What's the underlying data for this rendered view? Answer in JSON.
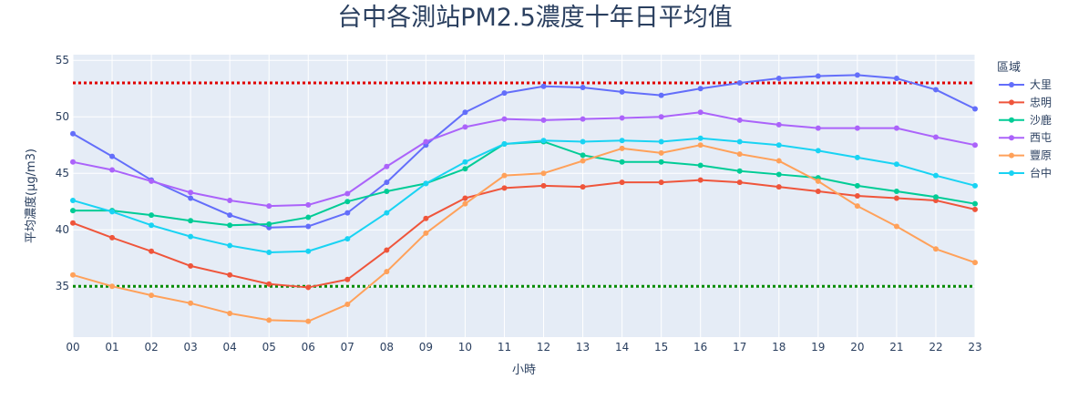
{
  "colors": {
    "plot_bg": "#e5ecf6",
    "grid": "#ffffff",
    "text": "#2a3f5f",
    "ref_red": "#e00000",
    "ref_green": "#008a00"
  },
  "chart_data": {
    "type": "line",
    "title": "台中各測站PM2.5濃度十年日平均值",
    "xlabel": "小時",
    "ylabel": "平均濃度(μg/m3)",
    "categories": [
      "00",
      "01",
      "02",
      "03",
      "04",
      "05",
      "06",
      "07",
      "08",
      "09",
      "10",
      "11",
      "12",
      "13",
      "14",
      "15",
      "16",
      "17",
      "18",
      "19",
      "20",
      "21",
      "22",
      "23"
    ],
    "ylim": [
      30.5,
      55.5
    ],
    "yticks": [
      35,
      40,
      45,
      50,
      55
    ],
    "grid": true,
    "legend_title": "區域",
    "legend_position": "right",
    "reference_lines": [
      {
        "y": 53,
        "color": "#e00000",
        "style": "dotted"
      },
      {
        "y": 35,
        "color": "#008a00",
        "style": "dotted"
      }
    ],
    "series": [
      {
        "name": "大里",
        "color": "#636efa",
        "values": [
          48.5,
          46.5,
          44.4,
          42.8,
          41.3,
          40.2,
          40.3,
          41.5,
          44.2,
          47.5,
          50.4,
          52.1,
          52.7,
          52.6,
          52.2,
          51.9,
          52.5,
          53.0,
          53.4,
          53.6,
          53.7,
          53.4,
          52.4,
          50.7
        ]
      },
      {
        "name": "忠明",
        "color": "#ef553b",
        "values": [
          40.6,
          39.3,
          38.1,
          36.8,
          36.0,
          35.2,
          34.9,
          35.6,
          38.2,
          41.0,
          42.8,
          43.7,
          43.9,
          43.8,
          44.2,
          44.2,
          44.4,
          44.2,
          43.8,
          43.4,
          43.0,
          42.8,
          42.6,
          41.8
        ]
      },
      {
        "name": "沙鹿",
        "color": "#00cc96",
        "values": [
          41.7,
          41.7,
          41.3,
          40.8,
          40.4,
          40.5,
          41.1,
          42.5,
          43.4,
          44.1,
          45.4,
          47.6,
          47.8,
          46.6,
          46.0,
          46.0,
          45.7,
          45.2,
          44.9,
          44.6,
          43.9,
          43.4,
          42.9,
          42.3
        ]
      },
      {
        "name": "西屯",
        "color": "#ab63fa",
        "values": [
          46.0,
          45.3,
          44.3,
          43.3,
          42.6,
          42.1,
          42.2,
          43.2,
          45.6,
          47.8,
          49.1,
          49.8,
          49.7,
          49.8,
          49.9,
          50.0,
          50.4,
          49.7,
          49.3,
          49.0,
          49.0,
          49.0,
          48.2,
          47.5
        ]
      },
      {
        "name": "豐原",
        "color": "#ffa15a",
        "values": [
          36.0,
          35.0,
          34.2,
          33.5,
          32.6,
          32.0,
          31.9,
          33.4,
          36.3,
          39.7,
          42.3,
          44.8,
          45.0,
          46.1,
          47.2,
          46.8,
          47.5,
          46.7,
          46.1,
          44.3,
          42.1,
          40.3,
          38.3,
          37.1
        ]
      },
      {
        "name": "台中",
        "color": "#19d3f3",
        "values": [
          42.6,
          41.6,
          40.4,
          39.4,
          38.6,
          38.0,
          38.1,
          39.2,
          41.5,
          44.1,
          46.0,
          47.6,
          47.9,
          47.8,
          47.9,
          47.8,
          48.1,
          47.8,
          47.5,
          47.0,
          46.4,
          45.8,
          44.8,
          43.9
        ]
      }
    ]
  }
}
